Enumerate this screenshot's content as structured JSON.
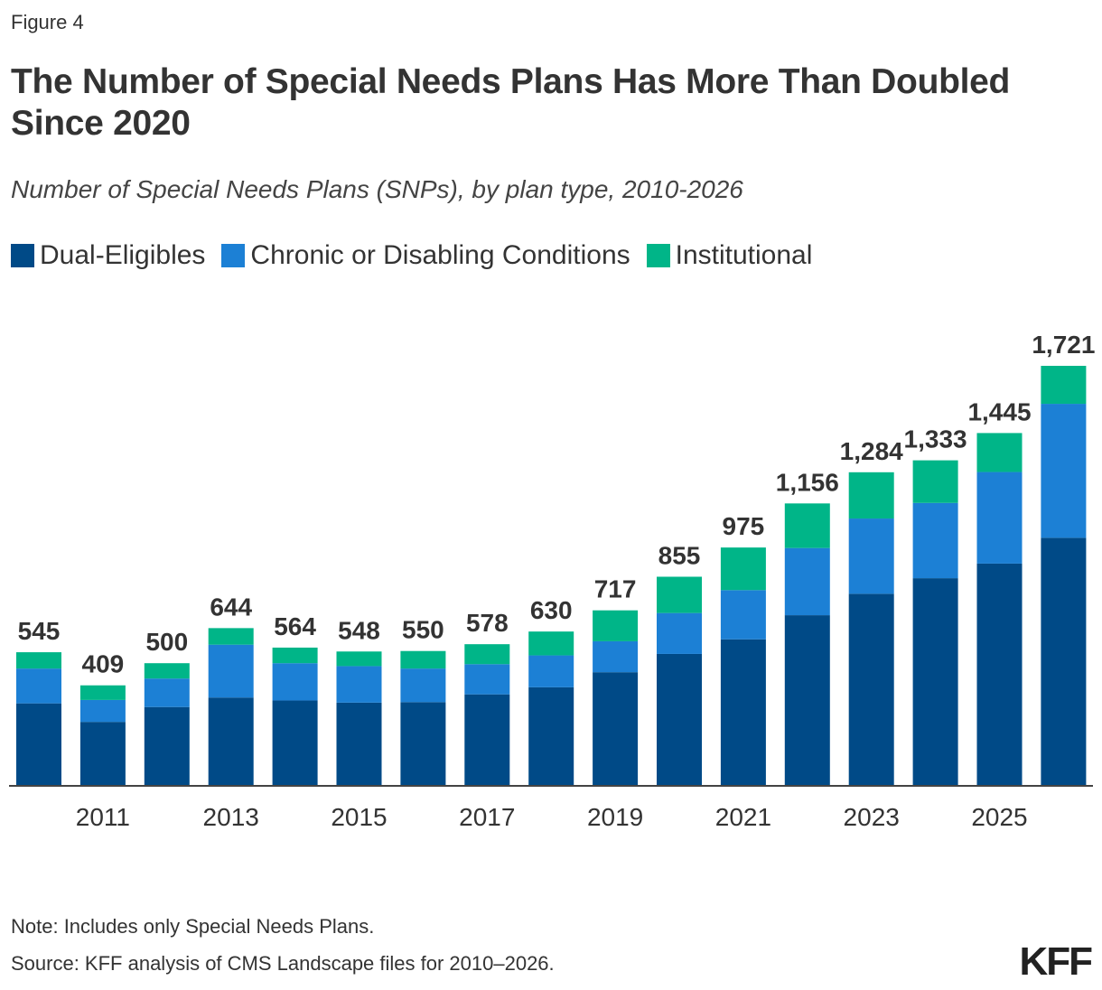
{
  "figure_label": "Figure 4",
  "title": "The Number of Special Needs Plans Has More Than Doubled Since 2020",
  "subtitle": "Number of Special Needs Plans (SNPs), by plan type, 2010-2026",
  "note": "Note: Includes only Special Needs Plans.",
  "source": "Source: KFF analysis of CMS Landscape files for 2010–2026.",
  "logo": "KFF",
  "colors": {
    "dual": "#004A87",
    "chronic": "#1C80D5",
    "institutional": "#00B588"
  },
  "chart_data": {
    "type": "bar",
    "stacked": true,
    "categories": [
      "2010",
      "2011",
      "2012",
      "2013",
      "2014",
      "2015",
      "2016",
      "2017",
      "2018",
      "2019",
      "2020",
      "2021",
      "2022",
      "2023",
      "2024",
      "2025",
      "2026"
    ],
    "x_tick_labels": [
      "2011",
      "2013",
      "2015",
      "2017",
      "2019",
      "2021",
      "2023",
      "2025"
    ],
    "series": [
      {
        "name": "Dual-Eligibles",
        "color": "#004A87",
        "values": [
          335,
          259,
          320,
          359,
          347,
          338,
          340,
          372,
          401,
          463,
          538,
          598,
          697,
          785,
          849,
          909,
          1015
        ]
      },
      {
        "name": "Chronic or Disabling Conditions",
        "color": "#1C80D5",
        "values": [
          143,
          90,
          117,
          217,
          153,
          150,
          138,
          124,
          131,
          127,
          168,
          202,
          276,
          309,
          309,
          376,
          550
        ]
      },
      {
        "name": "Institutional",
        "color": "#00B588",
        "values": [
          67,
          60,
          63,
          68,
          64,
          60,
          72,
          82,
          98,
          127,
          149,
          175,
          183,
          190,
          175,
          160,
          156
        ]
      }
    ],
    "totals": [
      545,
      409,
      500,
      644,
      564,
      548,
      550,
      578,
      630,
      717,
      855,
      975,
      1156,
      1284,
      1333,
      1445,
      1721
    ],
    "total_labels": [
      "545",
      "409",
      "500",
      "644",
      "564",
      "548",
      "550",
      "578",
      "630",
      "717",
      "855",
      "975",
      "1,156",
      "1,284",
      "1,333",
      "1,445",
      "1,721"
    ],
    "ylim": [
      0,
      1721
    ],
    "grid": false,
    "legend_position": "top-left"
  }
}
